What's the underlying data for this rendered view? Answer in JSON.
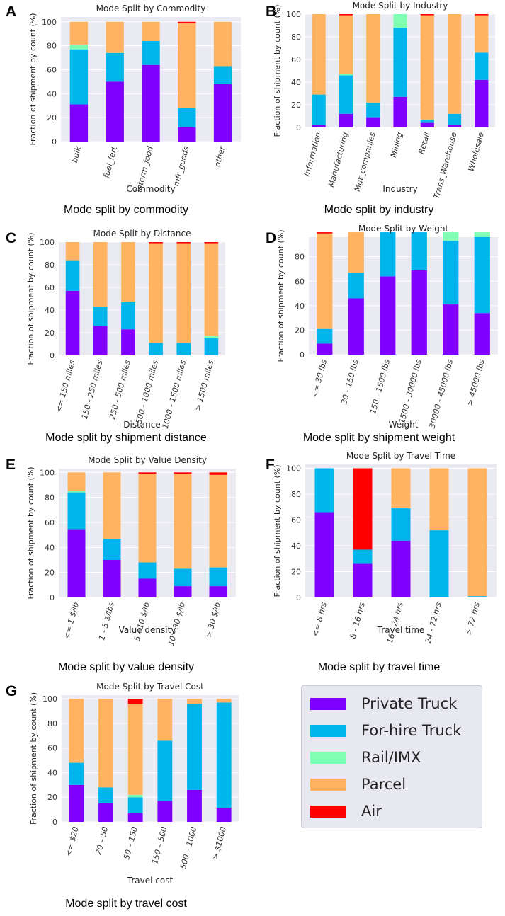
{
  "colors": {
    "Private Truck": "#8000ff",
    "For-hire Truck": "#00b4ec",
    "Rail/IMX": "#80ffb4",
    "Parcel": "#ffb360",
    "Air": "#ff0000"
  },
  "legend": {
    "items": [
      {
        "label": "Private Truck",
        "color": "#8000ff"
      },
      {
        "label": "For-hire Truck",
        "color": "#00b4ec"
      },
      {
        "label": "Rail/IMX",
        "color": "#80ffb4"
      },
      {
        "label": "Parcel",
        "color": "#ffb360"
      },
      {
        "label": "Air",
        "color": "#ff0000"
      }
    ]
  },
  "chart_data": [
    {
      "panel": "A",
      "caption": "Mode split by commodity",
      "type": "bar",
      "stacked": true,
      "title": "Mode Split by Commodity",
      "xlabel": "Commodity",
      "ylabel": "Fraction of shipment by count (%)",
      "ylim": [
        0,
        100
      ],
      "yticks": [
        0,
        20,
        40,
        60,
        80,
        100
      ],
      "categories": [
        "bulk",
        "fuel_fert",
        "interm_food",
        "mfr_goods",
        "other"
      ],
      "series": [
        {
          "name": "Private Truck",
          "values": [
            31,
            50,
            64,
            12,
            48
          ]
        },
        {
          "name": "For-hire Truck",
          "values": [
            46,
            24,
            20,
            16,
            15
          ]
        },
        {
          "name": "Rail/IMX",
          "values": [
            4,
            0,
            0,
            0,
            0
          ]
        },
        {
          "name": "Parcel",
          "values": [
            19,
            26,
            16,
            71,
            37
          ]
        },
        {
          "name": "Air",
          "values": [
            0,
            0,
            0,
            1,
            0
          ]
        }
      ]
    },
    {
      "panel": "B",
      "caption": "Mode split by industry",
      "type": "bar",
      "stacked": true,
      "title": "Mode Split by Industry",
      "xlabel": "Industry",
      "ylabel": "Fraction of shipment by count (%)",
      "ylim": [
        0,
        100
      ],
      "yticks": [
        0,
        20,
        40,
        60,
        80,
        100
      ],
      "categories": [
        "Information",
        "Manufacturing",
        "Mgt_companies",
        "Mining",
        "Retail",
        "Trans_Warehouse",
        "Wholesale"
      ],
      "series": [
        {
          "name": "Private Truck",
          "values": [
            2,
            12,
            9,
            27,
            4,
            2,
            42
          ]
        },
        {
          "name": "For-hire Truck",
          "values": [
            27,
            34,
            13,
            61,
            3,
            10,
            24
          ]
        },
        {
          "name": "Rail/IMX",
          "values": [
            0,
            1,
            0,
            12,
            0,
            0,
            0
          ]
        },
        {
          "name": "Parcel",
          "values": [
            71,
            52,
            78,
            0,
            92,
            88,
            33
          ]
        },
        {
          "name": "Air",
          "values": [
            0,
            1,
            0,
            0,
            1,
            0,
            1
          ]
        }
      ]
    },
    {
      "panel": "C",
      "caption": "Mode split by shipment distance",
      "type": "bar",
      "stacked": true,
      "title": "Mode Split by Distance",
      "xlabel": "Distance",
      "ylabel": "Fraction of shipment by count (%)",
      "ylim": [
        0,
        100
      ],
      "yticks": [
        0,
        20,
        40,
        60,
        80,
        100
      ],
      "categories": [
        "<= 150 miles",
        "150 - 250 miles",
        "250 - 500 miles",
        "500 - 1000 miles",
        "1000 - 1500 miles",
        "> 1500 miles"
      ],
      "series": [
        {
          "name": "Private Truck",
          "values": [
            57,
            26,
            23,
            0,
            0,
            0
          ]
        },
        {
          "name": "For-hire Truck",
          "values": [
            27,
            17,
            24,
            11,
            11,
            15
          ]
        },
        {
          "name": "Rail/IMX",
          "values": [
            0,
            0,
            0,
            0,
            0,
            2
          ]
        },
        {
          "name": "Parcel",
          "values": [
            16,
            57,
            53,
            88,
            88,
            82
          ]
        },
        {
          "name": "Air",
          "values": [
            0,
            0,
            0,
            1,
            1,
            1
          ]
        }
      ]
    },
    {
      "panel": "D",
      "caption": "Mode split by shipment weight",
      "type": "bar",
      "stacked": true,
      "title": "Mode Split by Weight",
      "xlabel": "Weight",
      "ylabel": "Fraction of shipment by count (%)",
      "ylim": [
        0,
        100
      ],
      "yticks": [
        0,
        20,
        40,
        60,
        80
      ],
      "categories": [
        "<= 30 lbs",
        "30 - 150 lbs",
        "150 - 1500 lbs",
        "1500 - 30000 lbs",
        "30000 - 45000 lbs",
        "> 45000 lbs"
      ],
      "series": [
        {
          "name": "Private Truck",
          "values": [
            9,
            46,
            64,
            69,
            41,
            34
          ]
        },
        {
          "name": "For-hire Truck",
          "values": [
            12,
            21,
            36,
            31,
            52,
            62
          ]
        },
        {
          "name": "Rail/IMX",
          "values": [
            0,
            0,
            0,
            0,
            7,
            4
          ]
        },
        {
          "name": "Parcel",
          "values": [
            78,
            33,
            0,
            0,
            0,
            0
          ]
        },
        {
          "name": "Air",
          "values": [
            1,
            0,
            0,
            0,
            0,
            0
          ]
        }
      ]
    },
    {
      "panel": "E",
      "caption": "Mode split by value density",
      "type": "bar",
      "stacked": true,
      "title": "Mode Split by Value Density",
      "xlabel": "Value density",
      "ylabel": "Fraction of shipment by count (%)",
      "ylim": [
        0,
        100
      ],
      "yticks": [
        0,
        20,
        40,
        60,
        80,
        100
      ],
      "categories": [
        "<= 1 $/lb",
        "1 - 5 $/lbs",
        "5 - 10 $/lb",
        "10 - 30 $/lb",
        "> 30 $/lb"
      ],
      "series": [
        {
          "name": "Private Truck",
          "values": [
            54,
            30,
            15,
            9,
            9
          ]
        },
        {
          "name": "For-hire Truck",
          "values": [
            30,
            17,
            13,
            14,
            15
          ]
        },
        {
          "name": "Rail/IMX",
          "values": [
            1,
            0,
            0,
            0,
            0
          ]
        },
        {
          "name": "Parcel",
          "values": [
            15,
            53,
            71,
            76,
            74
          ]
        },
        {
          "name": "Air",
          "values": [
            0,
            0,
            1,
            1,
            2
          ]
        }
      ]
    },
    {
      "panel": "F",
      "caption": "Mode split by travel time",
      "type": "bar",
      "stacked": true,
      "title": "Mode Split by Travel Time",
      "xlabel": "Travel time",
      "ylabel": "Fraction of shipment by count (%)",
      "ylim": [
        0,
        100
      ],
      "yticks": [
        0,
        20,
        40,
        60,
        80,
        100
      ],
      "categories": [
        "<= 8 hrs",
        "8 - 16 hrs",
        "16 - 24 hrs",
        "24 - 72 hrs",
        "> 72 hrs"
      ],
      "series": [
        {
          "name": "Private Truck",
          "values": [
            66,
            26,
            44,
            0,
            0
          ]
        },
        {
          "name": "For-hire Truck",
          "values": [
            34,
            11,
            25,
            52,
            1
          ]
        },
        {
          "name": "Rail/IMX",
          "values": [
            0,
            0,
            0,
            0,
            0
          ]
        },
        {
          "name": "Parcel",
          "values": [
            0,
            0,
            31,
            48,
            99
          ]
        },
        {
          "name": "Air",
          "values": [
            0,
            63,
            0,
            0,
            0
          ]
        }
      ]
    },
    {
      "panel": "G",
      "caption": "Mode split by travel cost",
      "type": "bar",
      "stacked": true,
      "title": "Mode Split by Travel Cost",
      "xlabel": "Travel cost",
      "ylabel": "Fraction of shipment by count (%)",
      "ylim": [
        0,
        100
      ],
      "yticks": [
        0,
        20,
        40,
        60,
        80,
        100
      ],
      "categories": [
        "<= $20",
        "20 – 50",
        "50 – 150",
        "150 – 500",
        "500 – 1000",
        "> $1000"
      ],
      "series": [
        {
          "name": "Private Truck",
          "values": [
            30,
            15,
            7,
            17,
            26,
            11
          ]
        },
        {
          "name": "For-hire Truck",
          "values": [
            18,
            13,
            13,
            49,
            70,
            86
          ]
        },
        {
          "name": "Rail/IMX",
          "values": [
            0,
            0,
            2,
            0,
            0,
            0
          ]
        },
        {
          "name": "Parcel",
          "values": [
            52,
            72,
            74,
            34,
            4,
            3
          ]
        },
        {
          "name": "Air",
          "values": [
            0,
            0,
            4,
            0,
            0,
            0
          ]
        }
      ]
    }
  ]
}
